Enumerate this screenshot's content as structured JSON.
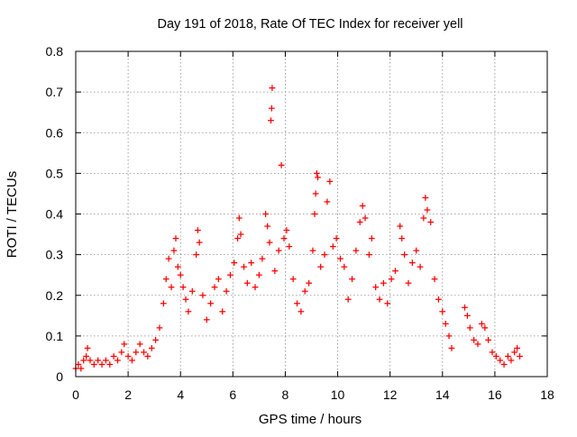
{
  "chart_data": {
    "type": "scatter",
    "title": "Day 191 of 2018, Rate Of TEC Index for receiver yell",
    "xlabel": "GPS time / hours",
    "ylabel": "ROTI / TECUs",
    "xlim": [
      0,
      18
    ],
    "ylim": [
      0,
      0.8
    ],
    "xticks": [
      0,
      2,
      4,
      6,
      8,
      10,
      12,
      14,
      16,
      18
    ],
    "yticks": [
      0,
      0.1,
      0.2,
      0.3,
      0.4,
      0.5,
      0.6,
      0.7,
      0.8
    ],
    "xtick_labels": [
      "0",
      "2",
      "4",
      "6",
      "8",
      "10",
      "12",
      "14",
      "16",
      "18"
    ],
    "ytick_labels": [
      "0",
      "0.1",
      "0.2",
      "0.3",
      "0.4",
      "0.5",
      "0.6",
      "0.7",
      "0.8"
    ],
    "grid": true,
    "marker": "+",
    "color": "#ff0000",
    "series": [
      {
        "name": "ROTI",
        "points": [
          [
            0.0,
            0.02
          ],
          [
            0.1,
            0.03
          ],
          [
            0.2,
            0.02
          ],
          [
            0.3,
            0.04
          ],
          [
            0.4,
            0.05
          ],
          [
            0.45,
            0.07
          ],
          [
            0.55,
            0.04
          ],
          [
            0.7,
            0.03
          ],
          [
            0.85,
            0.04
          ],
          [
            1.0,
            0.03
          ],
          [
            1.15,
            0.04
          ],
          [
            1.3,
            0.03
          ],
          [
            1.45,
            0.05
          ],
          [
            1.6,
            0.04
          ],
          [
            1.75,
            0.06
          ],
          [
            1.85,
            0.08
          ],
          [
            2.0,
            0.05
          ],
          [
            2.15,
            0.04
          ],
          [
            2.3,
            0.06
          ],
          [
            2.45,
            0.08
          ],
          [
            2.6,
            0.06
          ],
          [
            2.75,
            0.05
          ],
          [
            2.9,
            0.07
          ],
          [
            3.05,
            0.09
          ],
          [
            3.2,
            0.12
          ],
          [
            3.35,
            0.18
          ],
          [
            3.45,
            0.24
          ],
          [
            3.55,
            0.29
          ],
          [
            3.65,
            0.22
          ],
          [
            3.75,
            0.31
          ],
          [
            3.82,
            0.34
          ],
          [
            3.9,
            0.27
          ],
          [
            4.0,
            0.25
          ],
          [
            4.1,
            0.22
          ],
          [
            4.2,
            0.19
          ],
          [
            4.3,
            0.16
          ],
          [
            4.45,
            0.21
          ],
          [
            4.6,
            0.3
          ],
          [
            4.66,
            0.36
          ],
          [
            4.72,
            0.33
          ],
          [
            4.85,
            0.2
          ],
          [
            5.0,
            0.14
          ],
          [
            5.15,
            0.18
          ],
          [
            5.3,
            0.22
          ],
          [
            5.45,
            0.24
          ],
          [
            5.6,
            0.16
          ],
          [
            5.75,
            0.21
          ],
          [
            5.9,
            0.25
          ],
          [
            6.05,
            0.28
          ],
          [
            6.18,
            0.34
          ],
          [
            6.24,
            0.39
          ],
          [
            6.3,
            0.35
          ],
          [
            6.42,
            0.27
          ],
          [
            6.55,
            0.23
          ],
          [
            6.7,
            0.28
          ],
          [
            6.85,
            0.22
          ],
          [
            7.0,
            0.25
          ],
          [
            7.12,
            0.29
          ],
          [
            7.25,
            0.4
          ],
          [
            7.32,
            0.37
          ],
          [
            7.4,
            0.33
          ],
          [
            7.45,
            0.63
          ],
          [
            7.48,
            0.66
          ],
          [
            7.5,
            0.71
          ],
          [
            7.6,
            0.26
          ],
          [
            7.75,
            0.31
          ],
          [
            7.85,
            0.52
          ],
          [
            7.95,
            0.34
          ],
          [
            8.05,
            0.36
          ],
          [
            8.15,
            0.32
          ],
          [
            8.3,
            0.24
          ],
          [
            8.45,
            0.18
          ],
          [
            8.6,
            0.16
          ],
          [
            8.75,
            0.21
          ],
          [
            8.9,
            0.23
          ],
          [
            9.05,
            0.31
          ],
          [
            9.12,
            0.4
          ],
          [
            9.16,
            0.45
          ],
          [
            9.2,
            0.5
          ],
          [
            9.24,
            0.49
          ],
          [
            9.35,
            0.27
          ],
          [
            9.5,
            0.3
          ],
          [
            9.6,
            0.43
          ],
          [
            9.7,
            0.48
          ],
          [
            9.82,
            0.32
          ],
          [
            9.95,
            0.34
          ],
          [
            10.1,
            0.29
          ],
          [
            10.25,
            0.27
          ],
          [
            10.4,
            0.19
          ],
          [
            10.55,
            0.24
          ],
          [
            10.7,
            0.31
          ],
          [
            10.85,
            0.38
          ],
          [
            10.95,
            0.42
          ],
          [
            11.05,
            0.39
          ],
          [
            11.2,
            0.3
          ],
          [
            11.3,
            0.34
          ],
          [
            11.45,
            0.22
          ],
          [
            11.6,
            0.19
          ],
          [
            11.75,
            0.23
          ],
          [
            11.9,
            0.18
          ],
          [
            12.05,
            0.24
          ],
          [
            12.2,
            0.26
          ],
          [
            12.38,
            0.37
          ],
          [
            12.45,
            0.34
          ],
          [
            12.55,
            0.3
          ],
          [
            12.7,
            0.23
          ],
          [
            12.85,
            0.28
          ],
          [
            13.0,
            0.31
          ],
          [
            13.15,
            0.27
          ],
          [
            13.28,
            0.39
          ],
          [
            13.35,
            0.44
          ],
          [
            13.42,
            0.41
          ],
          [
            13.55,
            0.38
          ],
          [
            13.7,
            0.24
          ],
          [
            13.85,
            0.19
          ],
          [
            14.0,
            0.16
          ],
          [
            14.12,
            0.13
          ],
          [
            14.25,
            0.1
          ],
          [
            14.35,
            0.07
          ],
          [
            14.85,
            0.17
          ],
          [
            14.95,
            0.15
          ],
          [
            15.05,
            0.12
          ],
          [
            15.2,
            0.09
          ],
          [
            15.35,
            0.08
          ],
          [
            15.5,
            0.13
          ],
          [
            15.62,
            0.12
          ],
          [
            15.75,
            0.09
          ],
          [
            15.9,
            0.06
          ],
          [
            16.05,
            0.05
          ],
          [
            16.2,
            0.04
          ],
          [
            16.35,
            0.03
          ],
          [
            16.5,
            0.05
          ],
          [
            16.62,
            0.04
          ],
          [
            16.75,
            0.06
          ],
          [
            16.85,
            0.07
          ],
          [
            16.95,
            0.05
          ]
        ]
      }
    ]
  }
}
